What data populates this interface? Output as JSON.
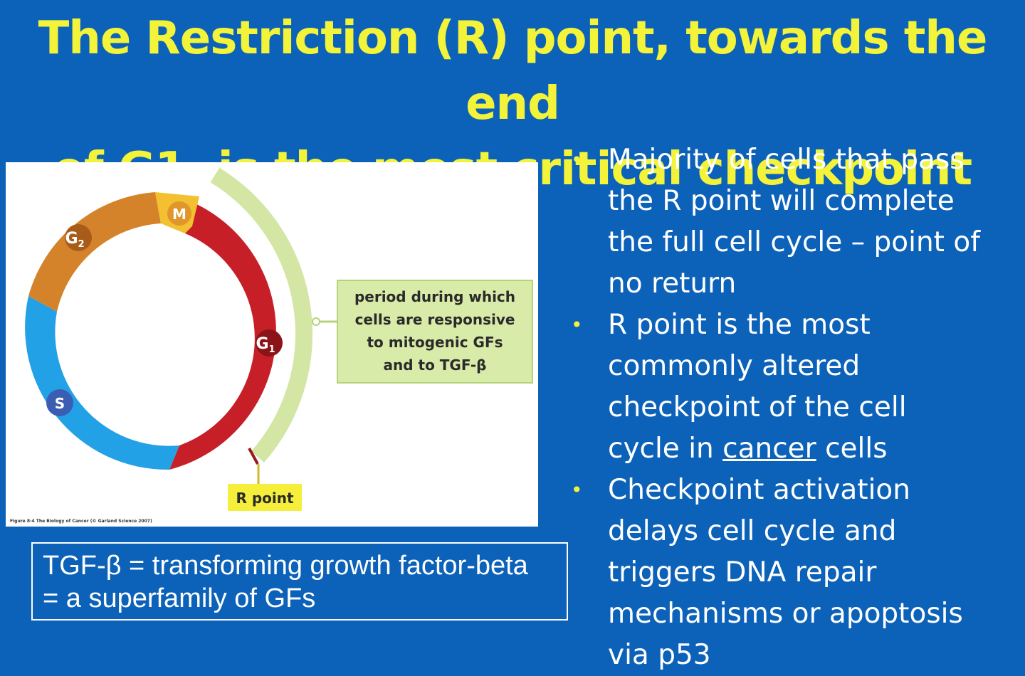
{
  "title": {
    "line1": "The Restriction (R) point, towards the end",
    "line2": "of G1, is the most critical checkpoint"
  },
  "figure": {
    "phases": {
      "m": "M",
      "g1_main": "G",
      "g1_sub": "1",
      "g2_main": "G",
      "g2_sub": "2",
      "s": "S"
    },
    "callout": {
      "line1": "period during which",
      "line2": "cells are responsive",
      "line3": "to mitogenic GFs",
      "line4": "and to TGF-β"
    },
    "r_point_label": "R point",
    "caption": "Figure 8-4 The Biology of Cancer (© Garland Science 2007)",
    "colors": {
      "g1": "#c61f27",
      "g2": "#d4832b",
      "s": "#23a1e6",
      "m": "#f2c030",
      "responsive_band": "#d3e6a4",
      "callout_fill": "#d8eba8",
      "r_point_fill": "#f5ef3c"
    }
  },
  "bullets": [
    {
      "lines": [
        "Majority of cells that pass",
        "the R point will complete",
        "the full cell cycle – point of",
        "no return"
      ]
    },
    {
      "lines": [
        "R point is the most",
        "commonly altered",
        "checkpoint of the cell"
      ],
      "last_line": {
        "prefix": "cycle in ",
        "underlined": "cancer",
        "suffix": " cells"
      }
    },
    {
      "lines": [
        "Checkpoint activation",
        "delays cell cycle and",
        "triggers DNA repair",
        "mechanisms or apoptosis",
        "via p53"
      ]
    }
  ],
  "bullet_glyph": "•",
  "definition": {
    "line1": "TGF-β = transforming growth factor-beta",
    "line2": "= a superfamily of GFs"
  }
}
